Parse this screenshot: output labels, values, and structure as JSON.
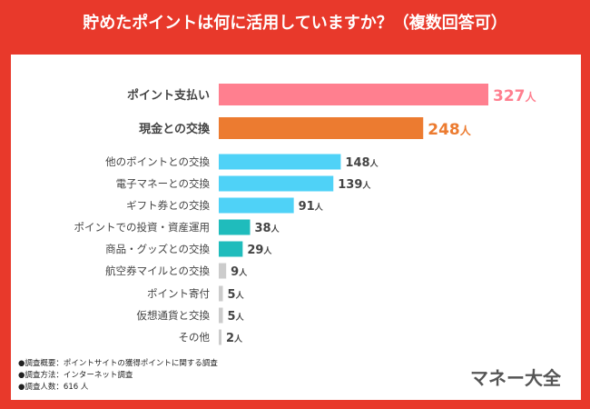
{
  "title": "貯めたポイントは何に活用していますか？（複数回答可）",
  "chart_data": {
    "type": "bar",
    "orientation": "horizontal",
    "title": "貯めたポイントは何に活用していますか？（複数回答可）",
    "unit": "人",
    "categories": [
      "ポイント支払い",
      "現金との交換",
      "他のポイントとの交換",
      "電子マネーとの交換",
      "ギフト券との交換",
      "ポイントでの投資・資産運用",
      "商品・グッズとの交換",
      "航空券マイルとの交換",
      "ポイント寄付",
      "仮想通貨と交換",
      "その他"
    ],
    "values": [
      327,
      248,
      148,
      139,
      91,
      38,
      29,
      9,
      5,
      5,
      2
    ],
    "colors": [
      "#ff7f8f",
      "#ec7b30",
      "#4fd2f7",
      "#4fd2f7",
      "#4fd2f7",
      "#1fbcbc",
      "#1fbcbc",
      "#cccccc",
      "#cccccc",
      "#cccccc",
      "#cccccc"
    ],
    "label_colors": [
      "#ff7f8f",
      "#ec7b30",
      "#444444",
      "#444444",
      "#444444",
      "#444444",
      "#444444",
      "#444444",
      "#444444",
      "#444444",
      "#444444"
    ]
  },
  "notes": [
    "●調査概要：ポイントサイトの獲得ポイントに関する調査",
    "●調査方法：インターネット調査",
    "●調査人数：616 人"
  ],
  "logo": "マネー大全"
}
